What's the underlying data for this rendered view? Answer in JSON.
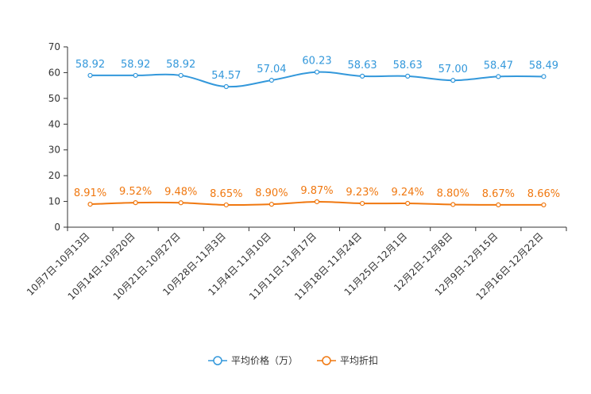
{
  "chart_data": {
    "type": "line",
    "title": "",
    "xlabel": "",
    "ylabel": "",
    "ylim": [
      0,
      70
    ],
    "yticks": [
      0,
      10,
      20,
      30,
      40,
      50,
      60,
      70
    ],
    "categories": [
      "10月7日-10月13日",
      "10月14日-10月20日",
      "10月21日-10月27日",
      "10月28日-11月3日",
      "11月4日-11月10日",
      "11月11日-11月17日",
      "11月18日-11月24日",
      "11月25日-12月1日",
      "12月2日-12月8日",
      "12月9日-12月15日",
      "12月16日-12月22日"
    ],
    "series": [
      {
        "name": "平均价格（万）",
        "color": "#3398DB",
        "values": [
          58.92,
          58.92,
          58.92,
          54.57,
          57.04,
          60.23,
          58.63,
          58.63,
          57.0,
          58.47,
          58.49
        ],
        "labels": [
          "58.92",
          "58.92",
          "58.92",
          "54.57",
          "57.04",
          "60.23",
          "58.63",
          "58.63",
          "57.00",
          "58.47",
          "58.49"
        ]
      },
      {
        "name": "平均折扣",
        "color": "#F07810",
        "values": [
          8.91,
          9.52,
          9.48,
          8.65,
          8.9,
          9.87,
          9.23,
          9.24,
          8.8,
          8.67,
          8.66
        ],
        "labels": [
          "8.91%",
          "9.52%",
          "9.48%",
          "8.65%",
          "8.90%",
          "9.87%",
          "9.23%",
          "9.24%",
          "8.80%",
          "8.67%",
          "8.66%"
        ]
      }
    ],
    "legend": {
      "position": "bottom-center"
    },
    "grid": false
  }
}
